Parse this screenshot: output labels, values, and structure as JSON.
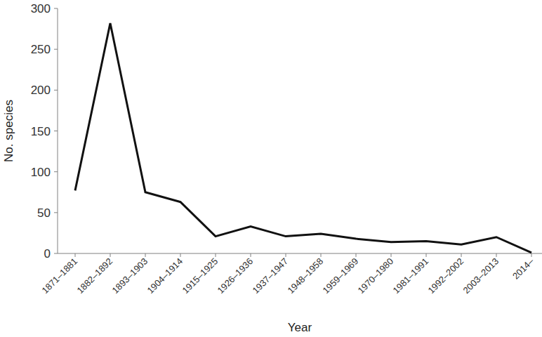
{
  "chart_data": {
    "type": "line",
    "x_label": "Year",
    "y_label": "No. species",
    "categories": [
      "1871–1881",
      "1882–1892",
      "1893–1903",
      "1904–1914",
      "1915–1925",
      "1926–1936",
      "1937–1947",
      "1948–1958",
      "1959–1969",
      "1970–1980",
      "1981–1991",
      "1992–2002",
      "2003–2013",
      "2014–"
    ],
    "values": [
      77,
      282,
      75,
      63,
      21,
      33,
      21,
      24,
      18,
      14,
      15,
      11,
      20,
      1
    ],
    "color": "#111111",
    "ylim": [
      0,
      300
    ],
    "yticks": [
      0,
      50,
      100,
      150,
      200,
      250,
      300
    ],
    "grid": false
  }
}
